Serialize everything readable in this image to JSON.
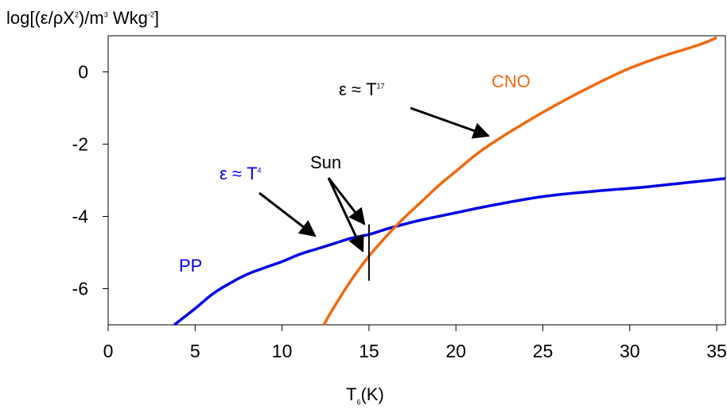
{
  "chart_data": {
    "type": "line",
    "ylabel": {
      "pre": "log[(ε/ρX",
      "sup1": "2",
      "mid": ")/m",
      "sup2": "3",
      "post1": " Wkg",
      "sup3": "-2",
      "post2": "]"
    },
    "xlabel": {
      "main": "T",
      "sub": "6",
      "post": "(K)"
    },
    "xlim": [
      0,
      35.5
    ],
    "ylim": [
      -7,
      1
    ],
    "x_ticks": [
      "0",
      "5",
      "10",
      "15",
      "20",
      "25",
      "30",
      "35"
    ],
    "y_ticks": [
      "0",
      "-2",
      "-4",
      "-6"
    ],
    "series": [
      {
        "name": "PP",
        "color": "#0000e6",
        "points": [
          [
            3.8,
            -7.0
          ],
          [
            5,
            -6.55
          ],
          [
            6,
            -6.15
          ],
          [
            7,
            -5.85
          ],
          [
            8,
            -5.6
          ],
          [
            9,
            -5.42
          ],
          [
            10,
            -5.25
          ],
          [
            11,
            -5.05
          ],
          [
            12,
            -4.9
          ],
          [
            13,
            -4.75
          ],
          [
            14,
            -4.6
          ],
          [
            15,
            -4.5
          ],
          [
            16,
            -4.35
          ],
          [
            17,
            -4.22
          ],
          [
            18,
            -4.1
          ],
          [
            20,
            -3.9
          ],
          [
            22,
            -3.7
          ],
          [
            25,
            -3.45
          ],
          [
            28,
            -3.3
          ],
          [
            31,
            -3.18
          ],
          [
            35.5,
            -2.95
          ]
        ]
      },
      {
        "name": "CNO",
        "color": "#f06a10",
        "points": [
          [
            12.4,
            -7.0
          ],
          [
            13,
            -6.5
          ],
          [
            14,
            -5.75
          ],
          [
            15,
            -5.1
          ],
          [
            16,
            -4.55
          ],
          [
            17,
            -4.05
          ],
          [
            18,
            -3.6
          ],
          [
            19,
            -3.15
          ],
          [
            20,
            -2.75
          ],
          [
            21,
            -2.35
          ],
          [
            22,
            -2.0
          ],
          [
            24,
            -1.4
          ],
          [
            26,
            -0.85
          ],
          [
            28,
            -0.35
          ],
          [
            30,
            0.1
          ],
          [
            32,
            0.45
          ],
          [
            34,
            0.75
          ],
          [
            35,
            0.95
          ]
        ]
      }
    ],
    "sun_marker": {
      "x": 15,
      "y_from": -4.22,
      "y_to": -5.78
    },
    "annotations": {
      "pp_label": "PP",
      "cno_label": "CNO",
      "pp_law": {
        "base": "ε ≈ T",
        "exp": "4"
      },
      "cno_law": {
        "base": "ε ≈ T",
        "exp": "17"
      },
      "sun_label": "Sun"
    },
    "grid": false
  }
}
